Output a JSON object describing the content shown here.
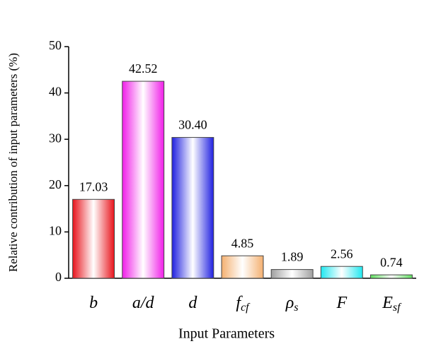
{
  "chart_data": {
    "type": "bar",
    "categories": [
      "b",
      "a/d",
      "d",
      "f",
      "ρ",
      "F",
      "E"
    ],
    "category_subscripts": [
      null,
      null,
      null,
      "cf",
      "s",
      null,
      "sf"
    ],
    "values": [
      17.03,
      42.52,
      30.4,
      4.85,
      1.89,
      2.56,
      0.74
    ],
    "value_labels": [
      "17.03",
      "42.52",
      "30.40",
      "4.85",
      "1.89",
      "2.56",
      "0.74"
    ],
    "colors": [
      "#e8141c",
      "#f01ee8",
      "#2020e0",
      "#f4b070",
      "#a0a0a0",
      "#20e8f0",
      "#60e060"
    ],
    "ylim": [
      0,
      50
    ],
    "yticks": [
      0,
      10,
      20,
      30,
      40,
      50
    ],
    "xlabel": "Input Parameters",
    "ylabel": "Relative contribution of input parameters (%)"
  }
}
